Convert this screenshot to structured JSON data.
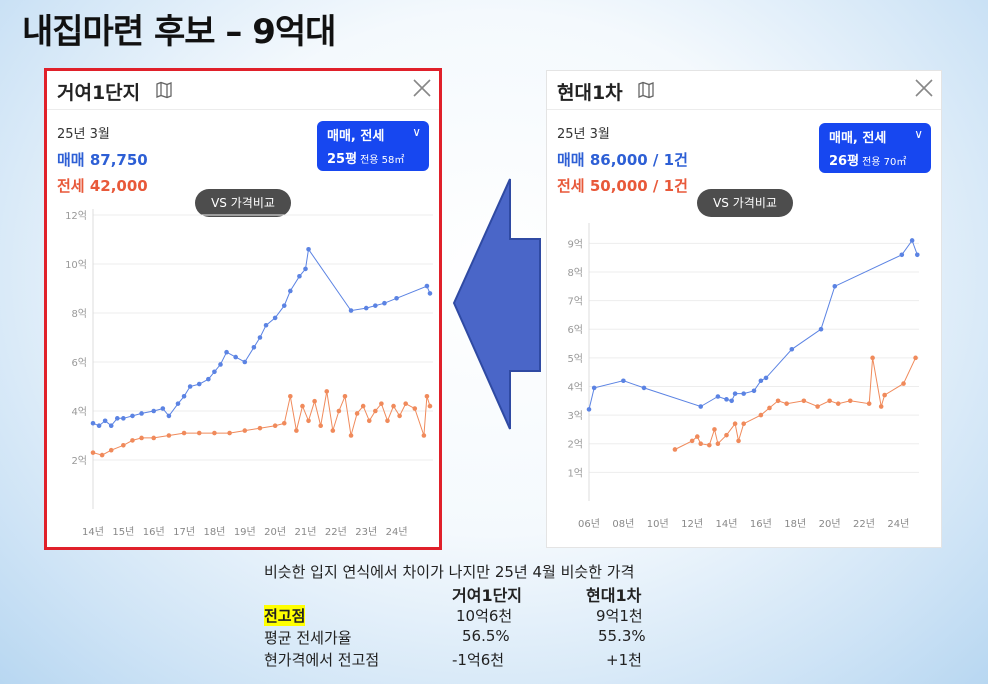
{
  "slide": {
    "title": "내집마련 후보 – 9억대"
  },
  "cards": [
    {
      "name": "거여1단지",
      "month": "25년 3월",
      "sale_text": "매매 87,750",
      "jeonse_text": "전세 42,000",
      "dropdown": {
        "type": "매매, 전세",
        "size": "25평",
        "area": "전용 58㎡"
      },
      "vs_label": "VS 가격비교"
    },
    {
      "name": "현대1차",
      "month": "25년 3월",
      "sale_text": "매매 86,000 / 1건",
      "jeonse_text": "전세 50,000 / 1건",
      "dropdown": {
        "type": "매매, 전세",
        "size": "26평",
        "area": "전용 70㎡"
      },
      "vs_label": "VS 가격비교"
    }
  ],
  "colors": {
    "sale": "#5b83e3",
    "jeonse": "#f08a5b",
    "highlight": "#ffff00",
    "border": "#e0202a",
    "arrow": "#4a66c8"
  },
  "chart_data": [
    {
      "type": "line",
      "title": "거여1단지",
      "y_unit": "억",
      "x_unit": "년",
      "xlim": [
        14,
        25.2
      ],
      "ylim": [
        0,
        12
      ],
      "y_ticks": [
        2,
        4,
        6,
        8,
        10,
        12
      ],
      "y_tick_labels": [
        "2억",
        "4억",
        "6억",
        "8억",
        "10억",
        "12억"
      ],
      "x_ticks": [
        14,
        15,
        16,
        17,
        18,
        19,
        20,
        21,
        22,
        23,
        24
      ],
      "x_tick_labels": [
        "14년",
        "15년",
        "16년",
        "17년",
        "18년",
        "19년",
        "20년",
        "21년",
        "22년",
        "23년",
        "24년"
      ],
      "series": [
        {
          "name": "매매",
          "color": "#5b83e3",
          "points": [
            [
              14.0,
              3.5
            ],
            [
              14.2,
              3.4
            ],
            [
              14.4,
              3.6
            ],
            [
              14.6,
              3.4
            ],
            [
              14.8,
              3.7
            ],
            [
              15.0,
              3.7
            ],
            [
              15.3,
              3.8
            ],
            [
              15.6,
              3.9
            ],
            [
              16.0,
              4.0
            ],
            [
              16.3,
              4.1
            ],
            [
              16.5,
              3.8
            ],
            [
              16.8,
              4.3
            ],
            [
              17.0,
              4.6
            ],
            [
              17.2,
              5.0
            ],
            [
              17.5,
              5.1
            ],
            [
              17.8,
              5.3
            ],
            [
              18.0,
              5.6
            ],
            [
              18.2,
              5.9
            ],
            [
              18.4,
              6.4
            ],
            [
              18.7,
              6.2
            ],
            [
              19.0,
              6.0
            ],
            [
              19.3,
              6.6
            ],
            [
              19.5,
              7.0
            ],
            [
              19.7,
              7.5
            ],
            [
              20.0,
              7.8
            ],
            [
              20.3,
              8.3
            ],
            [
              20.5,
              8.9
            ],
            [
              20.8,
              9.5
            ],
            [
              21.0,
              9.8
            ],
            [
              21.1,
              10.6
            ],
            [
              22.5,
              8.1
            ],
            [
              23.0,
              8.2
            ],
            [
              23.3,
              8.3
            ],
            [
              23.6,
              8.4
            ],
            [
              24.0,
              8.6
            ],
            [
              25.0,
              9.1
            ],
            [
              25.1,
              8.8
            ]
          ]
        },
        {
          "name": "전세",
          "color": "#f08a5b",
          "points": [
            [
              14.0,
              2.3
            ],
            [
              14.3,
              2.2
            ],
            [
              14.6,
              2.4
            ],
            [
              15.0,
              2.6
            ],
            [
              15.3,
              2.8
            ],
            [
              15.6,
              2.9
            ],
            [
              16.0,
              2.9
            ],
            [
              16.5,
              3.0
            ],
            [
              17.0,
              3.1
            ],
            [
              17.5,
              3.1
            ],
            [
              18.0,
              3.1
            ],
            [
              18.5,
              3.1
            ],
            [
              19.0,
              3.2
            ],
            [
              19.5,
              3.3
            ],
            [
              20.0,
              3.4
            ],
            [
              20.3,
              3.5
            ],
            [
              20.5,
              4.6
            ],
            [
              20.7,
              3.2
            ],
            [
              20.9,
              4.2
            ],
            [
              21.1,
              3.6
            ],
            [
              21.3,
              4.4
            ],
            [
              21.5,
              3.4
            ],
            [
              21.7,
              4.8
            ],
            [
              21.9,
              3.2
            ],
            [
              22.1,
              4.0
            ],
            [
              22.3,
              4.6
            ],
            [
              22.5,
              3.0
            ],
            [
              22.7,
              3.9
            ],
            [
              22.9,
              4.2
            ],
            [
              23.1,
              3.6
            ],
            [
              23.3,
              4.0
            ],
            [
              23.5,
              4.3
            ],
            [
              23.7,
              3.6
            ],
            [
              23.9,
              4.2
            ],
            [
              24.1,
              3.8
            ],
            [
              24.3,
              4.3
            ],
            [
              24.6,
              4.1
            ],
            [
              24.9,
              3.0
            ],
            [
              25.0,
              4.6
            ],
            [
              25.1,
              4.2
            ]
          ]
        }
      ]
    },
    {
      "type": "line",
      "title": "현대1차",
      "y_unit": "억",
      "x_unit": "년",
      "xlim": [
        6,
        25.2
      ],
      "ylim": [
        0,
        9.5
      ],
      "y_ticks": [
        1,
        2,
        3,
        4,
        5,
        6,
        7,
        8,
        9
      ],
      "y_tick_labels": [
        "1억",
        "2억",
        "3억",
        "4억",
        "5억",
        "6억",
        "7억",
        "8억",
        "9억"
      ],
      "x_ticks": [
        6,
        8,
        10,
        12,
        14,
        16,
        18,
        20,
        22,
        24
      ],
      "x_tick_labels": [
        "06년",
        "08년",
        "10년",
        "12년",
        "14년",
        "16년",
        "18년",
        "20년",
        "22년",
        "24년"
      ],
      "series": [
        {
          "name": "매매",
          "color": "#5b83e3",
          "points": [
            [
              6.0,
              3.2
            ],
            [
              6.3,
              3.95
            ],
            [
              8.0,
              4.2
            ],
            [
              9.2,
              3.95
            ],
            [
              12.5,
              3.3
            ],
            [
              13.5,
              3.65
            ],
            [
              14.0,
              3.55
            ],
            [
              14.3,
              3.5
            ],
            [
              14.5,
              3.75
            ],
            [
              15.0,
              3.75
            ],
            [
              15.6,
              3.85
            ],
            [
              16.0,
              4.2
            ],
            [
              16.3,
              4.3
            ],
            [
              17.8,
              5.3
            ],
            [
              19.5,
              6.0
            ],
            [
              20.3,
              7.5
            ],
            [
              24.2,
              8.6
            ],
            [
              24.8,
              9.1
            ],
            [
              25.1,
              8.6
            ]
          ]
        },
        {
          "name": "전세",
          "color": "#f08a5b",
          "points": [
            [
              11.0,
              1.8
            ],
            [
              12.0,
              2.1
            ],
            [
              12.3,
              2.25
            ],
            [
              12.5,
              2.0
            ],
            [
              13.0,
              1.95
            ],
            [
              13.3,
              2.5
            ],
            [
              13.5,
              2.0
            ],
            [
              14.0,
              2.3
            ],
            [
              14.5,
              2.7
            ],
            [
              14.7,
              2.1
            ],
            [
              15.0,
              2.7
            ],
            [
              16.0,
              3.0
            ],
            [
              16.5,
              3.25
            ],
            [
              17.0,
              3.5
            ],
            [
              17.5,
              3.4
            ],
            [
              18.5,
              3.5
            ],
            [
              19.3,
              3.3
            ],
            [
              20.0,
              3.5
            ],
            [
              20.5,
              3.4
            ],
            [
              21.2,
              3.5
            ],
            [
              22.3,
              3.4
            ],
            [
              22.5,
              5.0
            ],
            [
              23.0,
              3.3
            ],
            [
              23.2,
              3.7
            ],
            [
              24.3,
              4.1
            ],
            [
              25.0,
              5.0
            ]
          ]
        }
      ]
    }
  ],
  "summary": {
    "note": "비슷한 입지 연식에서 차이가 나지만 25년 4월 비슷한 가격",
    "col1": "거여1단지",
    "col2": "현대1차",
    "rows": [
      {
        "label": "전고점",
        "v1": "10억6천",
        "v2": "9억1천"
      },
      {
        "label": "평균 전세가율",
        "v1": "56.5%",
        "v2": "55.3%"
      },
      {
        "label": "현가격에서 전고점",
        "v1": "-1억6천",
        "v2": "+1천"
      }
    ]
  }
}
